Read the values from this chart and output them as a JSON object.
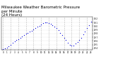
{
  "title": "Milwaukee Weather Barometric Pressure\nper Minute\n(24 Hours)",
  "title_fontsize": 4.0,
  "dot_color": "#0000dd",
  "dot_size": 0.8,
  "grid_color": "#bbbbbb",
  "background_color": "#ffffff",
  "ylim": [
    29.35,
    30.25
  ],
  "xlim": [
    -0.5,
    23.5
  ],
  "ytick_vals": [
    29.4,
    29.5,
    29.6,
    29.7,
    29.8,
    29.9,
    30.0,
    30.1,
    30.2
  ],
  "ytick_labels": [
    "29.4",
    "29.5",
    "29.6",
    "29.7",
    "29.8",
    "29.9",
    "30.0",
    "30.1",
    "30.2"
  ],
  "xticks": [
    0,
    1,
    2,
    3,
    4,
    5,
    6,
    7,
    8,
    9,
    10,
    11,
    12,
    13,
    14,
    15,
    16,
    17,
    18,
    19,
    20,
    21,
    22,
    23
  ],
  "vgrid_hours": [
    0,
    2,
    4,
    6,
    8,
    10,
    12,
    14,
    16,
    18,
    20,
    22
  ],
  "hours": [
    0,
    0.5,
    1,
    1.5,
    2,
    2.5,
    3,
    3.5,
    4,
    4.5,
    5,
    5.5,
    6,
    6.5,
    7,
    7.5,
    8,
    8.5,
    9,
    9.5,
    10,
    10.5,
    11,
    11.5,
    12,
    12.5,
    13,
    13.5,
    14,
    14.5,
    15,
    15.5,
    16,
    16.5,
    17,
    17.5,
    18,
    18.5,
    19,
    19.5,
    20,
    20.5,
    21,
    21.5,
    22,
    22.5,
    23
  ],
  "pressure": [
    29.38,
    29.39,
    29.42,
    29.45,
    29.5,
    29.54,
    29.58,
    29.62,
    29.65,
    29.68,
    29.72,
    29.76,
    29.8,
    29.82,
    29.85,
    29.88,
    29.92,
    29.95,
    29.98,
    30.01,
    30.05,
    30.08,
    30.1,
    30.11,
    30.08,
    30.06,
    30.02,
    29.99,
    29.95,
    29.9,
    29.82,
    29.76,
    29.68,
    29.62,
    29.55,
    29.5,
    29.48,
    29.48,
    29.52,
    29.56,
    29.62,
    29.68,
    29.78,
    29.86,
    29.95,
    30.03,
    30.12
  ]
}
